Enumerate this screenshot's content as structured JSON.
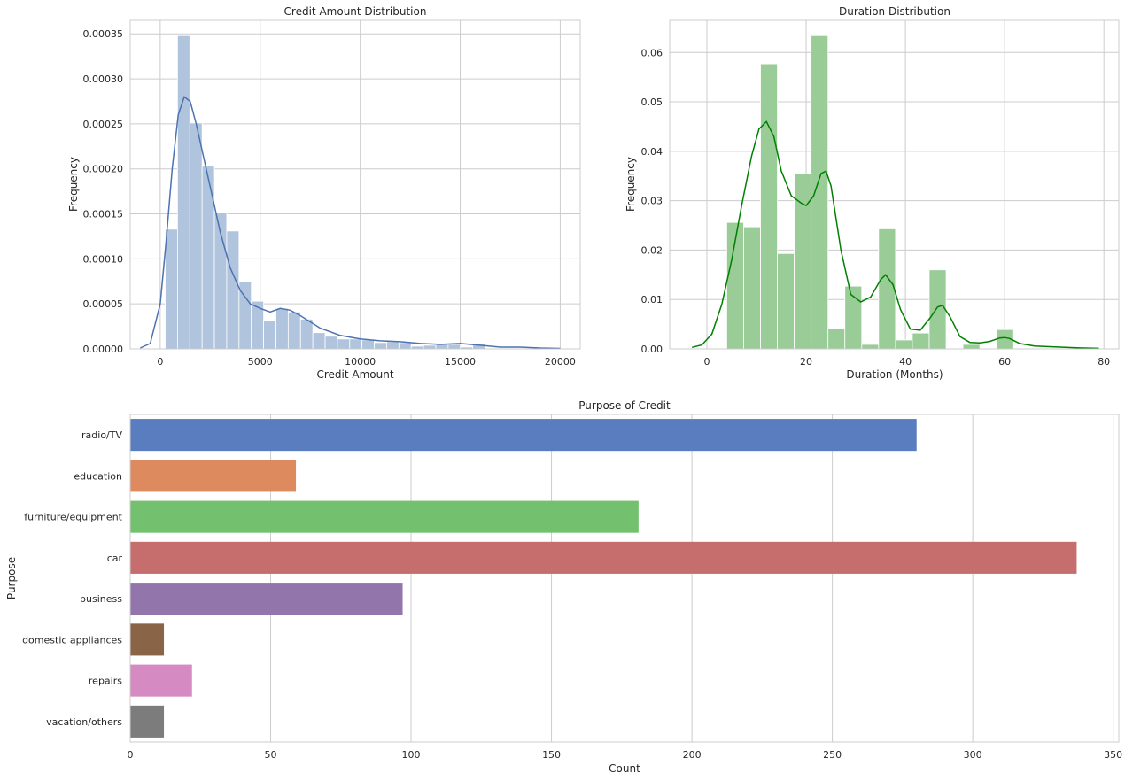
{
  "chart_data": [
    {
      "type": "histogram",
      "title": "Credit Amount Distribution",
      "xlabel": "Credit Amount",
      "ylabel": "Frequency",
      "xlim": [
        -1500,
        21000
      ],
      "ylim": [
        0,
        0.000365
      ],
      "xticks": [
        0,
        5000,
        10000,
        15000,
        20000
      ],
      "xtick_labels": [
        "0",
        "5000",
        "10000",
        "15000",
        "20000"
      ],
      "yticks": [
        0,
        5e-05,
        0.0001,
        0.00015,
        0.0002,
        0.00025,
        0.0003,
        0.00035
      ],
      "ytick_labels": [
        "0.00000",
        "0.00005",
        "0.00010",
        "0.00015",
        "0.00020",
        "0.00025",
        "0.00030",
        "0.00035"
      ],
      "bin_start": 250,
      "bin_width": 615,
      "values": [
        0.000133,
        0.000348,
        0.000251,
        0.000203,
        0.000151,
        0.000131,
        7.5e-05,
        5.3e-05,
        3.1e-05,
        4.5e-05,
        4.1e-05,
        3.3e-05,
        1.8e-05,
        1.4e-05,
        1.1e-05,
        1.1e-05,
        1e-05,
        7e-06,
        8e-06,
        7e-06,
        3e-06,
        4e-06,
        5e-06,
        5e-06,
        2e-06,
        6e-06,
        0,
        0,
        0,
        0,
        0
      ],
      "kde_x": [
        -1000,
        -500,
        0,
        300,
        600,
        900,
        1200,
        1500,
        1800,
        2200,
        2600,
        3000,
        3500,
        4000,
        4500,
        5000,
        5500,
        6000,
        6500,
        7000,
        7500,
        8000,
        9000,
        10000,
        11000,
        12000,
        13000,
        14000,
        15000,
        16000,
        17000,
        18000,
        19000,
        20000
      ],
      "kde_y": [
        1e-06,
        6e-06,
        5e-05,
        0.00012,
        0.0002,
        0.00026,
        0.00028,
        0.000275,
        0.00025,
        0.00021,
        0.00017,
        0.00013,
        9e-05,
        6.5e-05,
        5e-05,
        4.5e-05,
        4.1e-05,
        4.5e-05,
        4.3e-05,
        3.7e-05,
        3e-05,
        2.3e-05,
        1.5e-05,
        1.1e-05,
        9e-06,
        8e-06,
        6e-06,
        5e-06,
        6e-06,
        4e-06,
        2e-06,
        2e-06,
        1e-06,
        5e-07
      ],
      "bar_color": "#b0c4de",
      "line_color": "#4c72b0"
    },
    {
      "type": "histogram",
      "title": "Duration Distribution",
      "xlabel": "Duration (Months)",
      "ylabel": "Frequency",
      "xlim": [
        -7.5,
        83
      ],
      "ylim": [
        0,
        0.0665
      ],
      "xticks": [
        0,
        20,
        40,
        60,
        80
      ],
      "xtick_labels": [
        "0",
        "20",
        "40",
        "60",
        "80"
      ],
      "yticks": [
        0,
        0.01,
        0.02,
        0.03,
        0.04,
        0.05,
        0.06
      ],
      "ytick_labels": [
        "0.00",
        "0.01",
        "0.02",
        "0.03",
        "0.04",
        "0.05",
        "0.06"
      ],
      "bin_start": 4,
      "bin_width": 3.4,
      "values": [
        0.0256,
        0.0247,
        0.0577,
        0.0193,
        0.0354,
        0.0634,
        0.0041,
        0.0127,
        0.0009,
        0.0243,
        0.0018,
        0.0032,
        0.016,
        0,
        0.0009,
        0,
        0.0039,
        0,
        0,
        0,
        0,
        0
      ],
      "kde_x": [
        -3,
        -1,
        1,
        3,
        5,
        7,
        9,
        10.5,
        12,
        13.5,
        15,
        17,
        19,
        20,
        21.5,
        23,
        24,
        25,
        27,
        29,
        31,
        33,
        35,
        36,
        37.5,
        39,
        41,
        43,
        45,
        46.5,
        47.5,
        49,
        51,
        53,
        55,
        57,
        59,
        60,
        61,
        63,
        66,
        70,
        75,
        79
      ],
      "kde_y": [
        0.0003,
        0.0008,
        0.003,
        0.009,
        0.018,
        0.029,
        0.039,
        0.0445,
        0.046,
        0.043,
        0.036,
        0.031,
        0.0295,
        0.029,
        0.031,
        0.0355,
        0.036,
        0.033,
        0.02,
        0.011,
        0.0095,
        0.0105,
        0.014,
        0.015,
        0.013,
        0.008,
        0.004,
        0.0038,
        0.0063,
        0.0085,
        0.0088,
        0.0065,
        0.0025,
        0.0013,
        0.0012,
        0.0015,
        0.0022,
        0.0023,
        0.0021,
        0.0011,
        0.0006,
        0.0004,
        0.0002,
        0.0001
      ],
      "bar_color": "#99cc96",
      "line_color": "#008000"
    },
    {
      "type": "bar",
      "orientation": "horizontal",
      "title": "Purpose of Credit",
      "xlabel": "Count",
      "ylabel": "Purpose",
      "xlim": [
        0,
        352
      ],
      "xticks": [
        0,
        50,
        100,
        150,
        200,
        250,
        300,
        350
      ],
      "xtick_labels": [
        "0",
        "50",
        "100",
        "150",
        "200",
        "250",
        "300",
        "350"
      ],
      "categories": [
        "radio/TV",
        "education",
        "furniture/equipment",
        "car",
        "business",
        "domestic appliances",
        "repairs",
        "vacation/others"
      ],
      "values": [
        280,
        59,
        181,
        337,
        97,
        12,
        22,
        12
      ],
      "colors": [
        "#5a7dbf",
        "#dd8a5f",
        "#73c16f",
        "#c66d6d",
        "#9275ab",
        "#8a6447",
        "#d58bc2",
        "#7c7c7c"
      ]
    }
  ]
}
